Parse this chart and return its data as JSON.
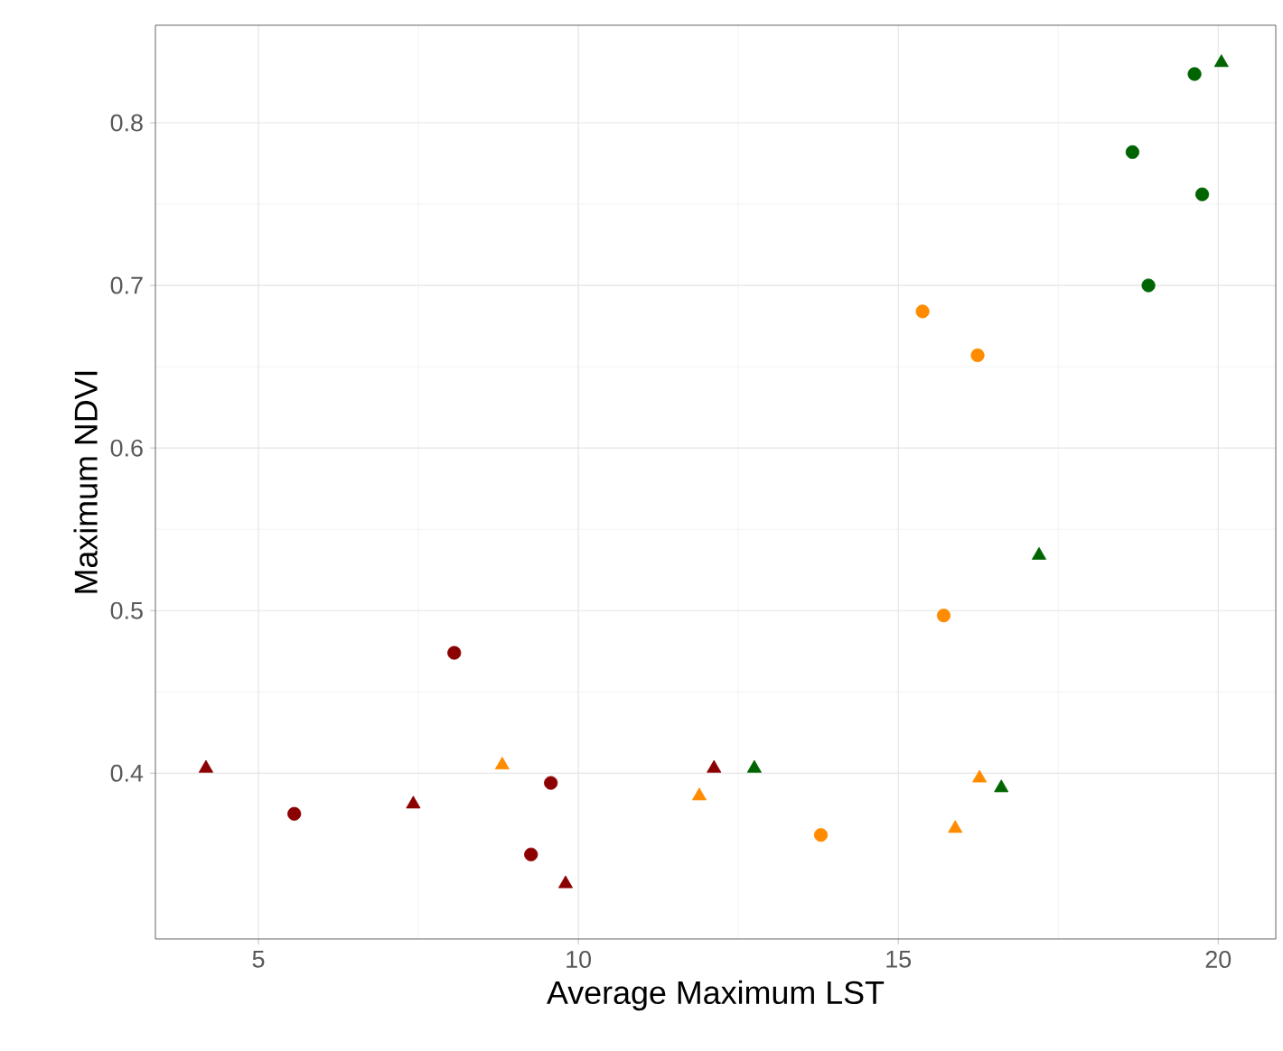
{
  "chart_data": {
    "type": "scatter",
    "xlabel": "Average Maximum LST",
    "ylabel": "Maximum NDVI",
    "xlim": [
      3.39,
      20.9
    ],
    "ylim": [
      0.298,
      0.86
    ],
    "xticks": [
      5,
      10,
      15,
      20
    ],
    "yticks": [
      0.4,
      0.5,
      0.6,
      0.7,
      0.8
    ],
    "grid": true,
    "series": [
      {
        "color": "#8b0000",
        "marker": "circle",
        "x": [
          5.56,
          8.06,
          9.57,
          9.26
        ],
        "values": [
          0.375,
          0.474,
          0.394,
          0.35
        ]
      },
      {
        "color": "#8b0000",
        "marker": "triangle",
        "x": [
          4.18,
          7.42,
          9.8,
          12.12
        ],
        "values": [
          0.403,
          0.381,
          0.332,
          0.403
        ]
      },
      {
        "color": "#ff8c00",
        "marker": "circle",
        "x": [
          13.79,
          15.71,
          15.38,
          16.24
        ],
        "values": [
          0.362,
          0.497,
          0.684,
          0.657
        ]
      },
      {
        "color": "#ff8c00",
        "marker": "triangle",
        "x": [
          8.81,
          11.89,
          15.89,
          16.27
        ],
        "values": [
          0.405,
          0.386,
          0.366,
          0.397
        ]
      },
      {
        "color": "#006400",
        "marker": "circle",
        "x": [
          18.91,
          19.75,
          18.66,
          19.63
        ],
        "values": [
          0.7,
          0.756,
          0.782,
          0.83
        ]
      },
      {
        "color": "#006400",
        "marker": "triangle",
        "x": [
          12.75,
          16.61,
          17.2,
          20.05
        ],
        "values": [
          0.403,
          0.391,
          0.534,
          0.837
        ]
      }
    ]
  }
}
